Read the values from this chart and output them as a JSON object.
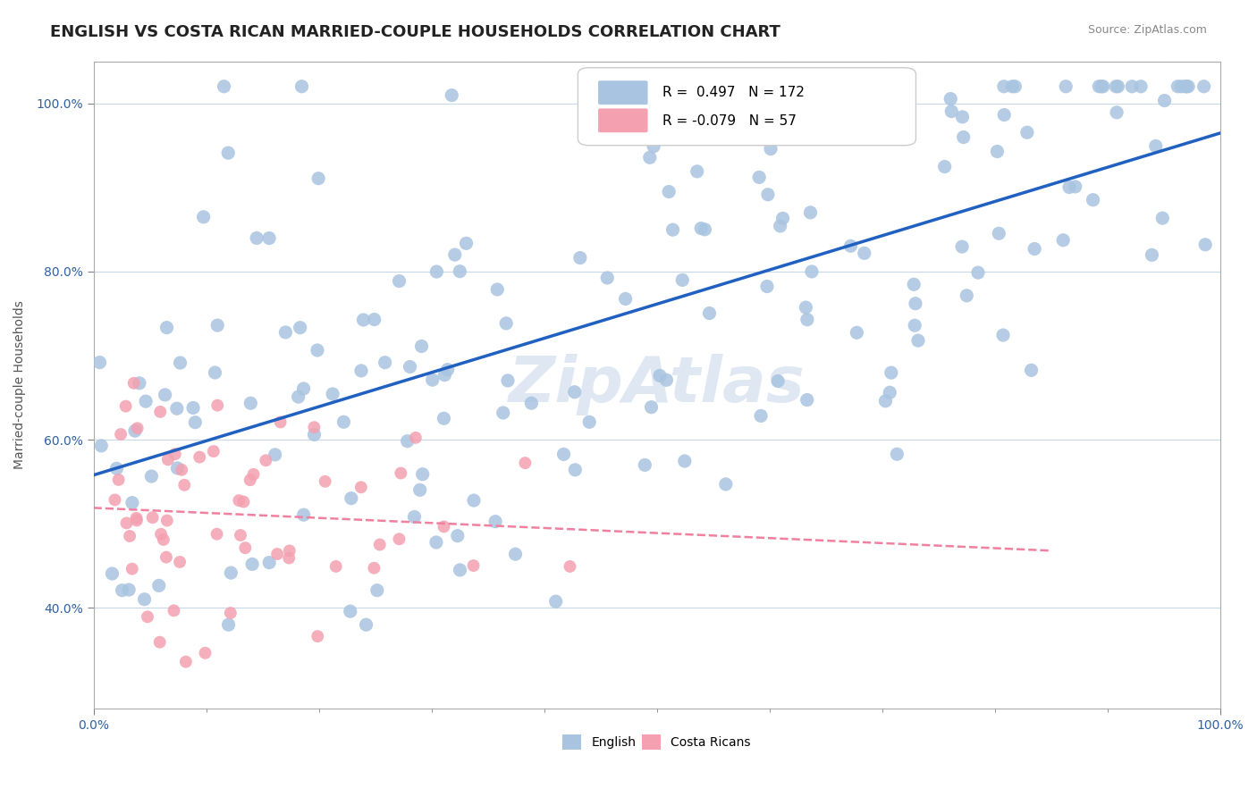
{
  "title": "ENGLISH VS COSTA RICAN MARRIED-COUPLE HOUSEHOLDS CORRELATION CHART",
  "source_text": "Source: ZipAtlas.com",
  "xlabel": "",
  "ylabel": "Married-couple Households",
  "x_tick_labels": [
    "0.0%",
    "100.0%"
  ],
  "y_tick_labels": [
    "40.0%",
    "60.0%",
    "80.0%",
    "100.0%"
  ],
  "xlim": [
    0.0,
    1.0
  ],
  "ylim": [
    0.28,
    1.05
  ],
  "watermark": "ZipAtlas",
  "english_R": 0.497,
  "english_N": 172,
  "costarican_R": -0.079,
  "costarican_N": 57,
  "english_color": "#a8c4e0",
  "costarican_color": "#f4a0b0",
  "english_line_color": "#2060c0",
  "costarican_line_color": "#f080a0",
  "legend_R_color": "#2060c0",
  "legend_N_color": "#000000",
  "background_color": "#ffffff",
  "grid_color": "#c8d8e8",
  "title_fontsize": 13,
  "axis_label_fontsize": 10,
  "tick_label_fontsize": 10,
  "watermark_color": "#c0d0e8",
  "watermark_fontsize": 52,
  "english_seed": 42,
  "costarican_seed": 99
}
